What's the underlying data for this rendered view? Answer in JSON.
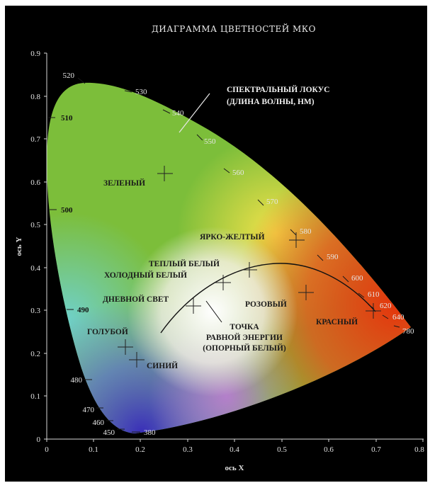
{
  "title": "ДИАГРАММА ЦВЕТНОСТЕЙ МКО",
  "x_axis_label": "ось X",
  "y_axis_label": "ось Y",
  "x_ticks": [
    "0",
    "0.1",
    "0.2",
    "0.3",
    "0.4",
    "0.5",
    "0.6",
    "0.7",
    "0.8"
  ],
  "y_ticks": [
    "0",
    "0.1",
    "0.2",
    "0.3",
    "0.4",
    "0.5",
    "0.6",
    "0.7",
    "0.8",
    "0.9"
  ],
  "locus_callout": {
    "line1": "СПЕКТРАЛЬНЫЙ ЛОКУС",
    "line2": "(ДЛИНА ВОЛНЫ, НМ)"
  },
  "wavelengths": [
    "380",
    "450",
    "460",
    "470",
    "480",
    "490",
    "500",
    "510",
    "520",
    "530",
    "540",
    "550",
    "560",
    "570",
    "580",
    "590",
    "600",
    "610",
    "620",
    "640",
    "780"
  ],
  "regions": {
    "green": "ЗЕЛЕНЫЙ",
    "bright_yellow": "ЯРКО-ЖЕЛТЫЙ",
    "warm_white": "ТЕПЛЫЙ БЕЛЫЙ",
    "cool_white": "ХОЛОДНЫЙ БЕЛЫЙ",
    "daylight": "ДНЕВНОЙ СВЕТ",
    "pink": "РОЗОВЫЙ",
    "red": "КРАСНЫЙ",
    "light_blue": "ГОЛУБОЙ",
    "blue": "СИНИЙ"
  },
  "equal_energy": {
    "line1": "ТОЧКА",
    "line2": "РАВНОЙ ЭНЕРГИИ",
    "line3": "(ОПОРНЫЙ БЕЛЫЙ)"
  }
}
